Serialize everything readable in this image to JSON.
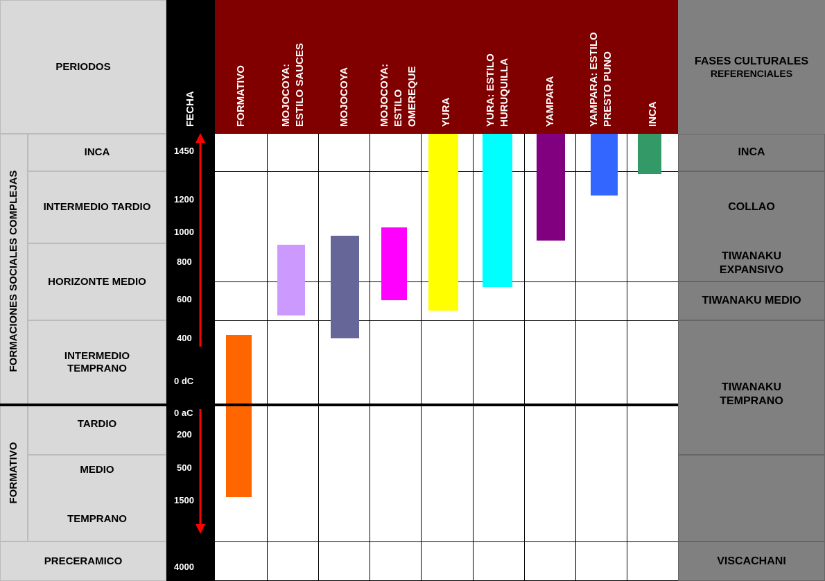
{
  "header": {
    "periods_label": "PERIODOS",
    "date_label": "FECHA",
    "phases_label_line1": "FASES CULTURALES",
    "phases_label_line2": "REFERENCIALES"
  },
  "cultures": [
    {
      "line1": "FORMATIVO",
      "line2": "",
      "line3": "",
      "color": "#FF6600"
    },
    {
      "line1": "MOJOCOYA:",
      "line2": "ESTILO SAUCES",
      "line3": "",
      "color": "#CC99FF"
    },
    {
      "line1": "MOJOCOYA",
      "line2": "",
      "line3": "",
      "color": "#666699"
    },
    {
      "line1": "MOJOCOYA:",
      "line2": "ESTILO",
      "line3": "OMEREQUE",
      "color": "#FF00FF"
    },
    {
      "line1": "YURA",
      "line2": "",
      "line3": "",
      "color": "#FFFF00"
    },
    {
      "line1": "YURA: ESTILO",
      "line2": "HURUQUILLA",
      "line3": "",
      "color": "#00FFFF"
    },
    {
      "line1": "YAMPARA",
      "line2": "",
      "line3": "",
      "color": "#800080"
    },
    {
      "line1": "YAMPARA: ESTILO",
      "line2": "PRESTO PUNO",
      "line3": "",
      "color": "#3366FF"
    },
    {
      "line1": "INCA",
      "line2": "",
      "line3": "",
      "color": "#339966"
    }
  ],
  "groups": {
    "complex": "FORMACIONES SOCIALES COMPLEJAS",
    "formative": "FORMATIVO"
  },
  "periods": {
    "inca": "INCA",
    "intermedio_tardio": "INTERMEDIO TARDIO",
    "horizonte_medio": "HORIZONTE MEDIO",
    "intermedio_temprano_l1": "INTERMEDIO",
    "intermedio_temprano_l2": "TEMPRANO",
    "tardio": "TARDIO",
    "medio": "MEDIO",
    "temprano": "TEMPRANO",
    "preceramico": "PRECERAMICO"
  },
  "dates": [
    "1450",
    "1200",
    "1000",
    "800",
    "600",
    "400",
    "0 dC",
    "0 aC",
    "200",
    "500",
    "1500",
    "4000"
  ],
  "phases": {
    "inca": "INCA",
    "collao": "COLLAO",
    "tiwanaku_expansivo_l1": "TIWANAKU",
    "tiwanaku_expansivo_l2": "EXPANSIVO",
    "tiwanaku_medio": "TIWANAKU MEDIO",
    "tiwanaku_temprano_l1": "TIWANAKU",
    "tiwanaku_temprano_l2": "TEMPRANO",
    "viscachani": "VISCACHANI"
  },
  "colors": {
    "header_bg": "#800000",
    "period_bg": "#D9D9D9",
    "phase_bg": "#808080",
    "date_bg": "#000000",
    "arrow": "#FF0000"
  }
}
